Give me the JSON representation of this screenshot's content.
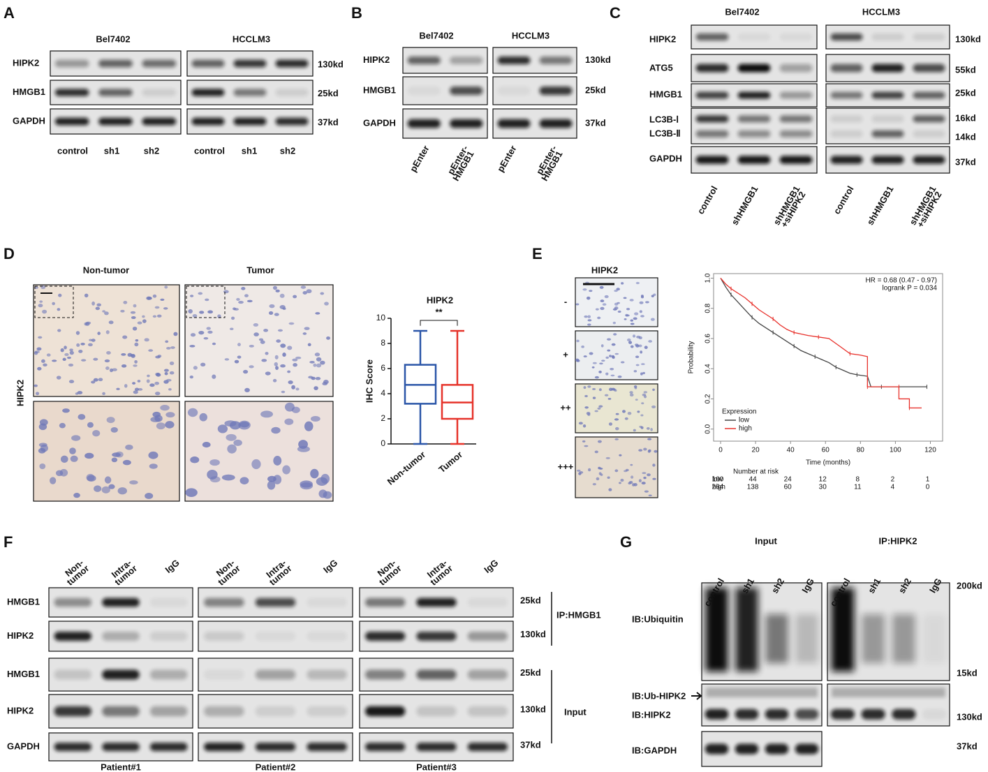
{
  "panels": {
    "A": {
      "label": "A",
      "cell_lines": [
        "Bel7402",
        "HCCLM3"
      ],
      "rows": [
        "HIPK2",
        "HMGB1",
        "GAPDH"
      ],
      "sizes": [
        "130kd",
        "25kd",
        "37kd"
      ],
      "lanes": [
        "control",
        "sh1",
        "sh2",
        "control",
        "sh1",
        "sh2"
      ]
    },
    "B": {
      "label": "B",
      "cell_lines": [
        "Bel7402",
        "HCCLM3"
      ],
      "rows": [
        "HIPK2",
        "HMGB1",
        "GAPDH"
      ],
      "sizes": [
        "130kd",
        "25kd",
        "37kd"
      ],
      "lanes": [
        [
          "pEnter"
        ],
        [
          "pEnter-",
          "HMGB1"
        ],
        [
          "pEnter"
        ],
        [
          "pEnter-",
          "HMGB1"
        ]
      ]
    },
    "C": {
      "label": "C",
      "cell_lines": [
        "Bel7402",
        "HCCLM3"
      ],
      "rows": [
        "HIPK2",
        "ATG5",
        "HMGB1",
        "LC3B-Ⅰ",
        "LC3B-Ⅱ",
        "GAPDH"
      ],
      "sizes": [
        "130kd",
        "55kd",
        "25kd",
        "16kd",
        "14kd",
        "37kd"
      ],
      "lanes": [
        [
          "control"
        ],
        [
          "shHMGB1"
        ],
        [
          "shHMGB1",
          "+siHIPK2"
        ],
        [
          "control"
        ],
        [
          "shHMGB1"
        ],
        [
          "shHMGB1",
          "+siHIPK2"
        ]
      ]
    },
    "D": {
      "label": "D",
      "headers": [
        "Non-tumor",
        "Tumor"
      ],
      "side_label": "HIPK2",
      "chart": {
        "type": "box",
        "title": "HIPK2",
        "annotation": "**",
        "ylabel": "IHC Score",
        "categories": [
          "Non-tumor",
          "Tumor"
        ],
        "boxes": [
          {
            "min": 0,
            "q1": 3.2,
            "median": 4.7,
            "q3": 6.3,
            "max": 9,
            "color": "#2b56a8"
          },
          {
            "min": 0,
            "q1": 2,
            "median": 3.3,
            "q3": 4.7,
            "max": 9,
            "color": "#e6332a"
          }
        ],
        "ylim": [
          0,
          10
        ],
        "yticks": [
          0,
          2,
          4,
          6,
          8,
          10
        ]
      }
    },
    "E": {
      "label": "E",
      "header": "HIPK2",
      "grades": [
        "-",
        "+",
        "++",
        "+++"
      ],
      "chart": {
        "type": "line",
        "xlabel": "Time (months)",
        "ylabel": "Probability",
        "annotations": [
          "HR = 0.68 (0.47 - 0.97)",
          "logrank P = 0.034"
        ],
        "legend_title": "Expression",
        "legend": "bottom-left",
        "xlim": [
          -4,
          127
        ],
        "ylim": [
          -0.08,
          1.03
        ],
        "xticks": [
          0,
          20,
          40,
          60,
          80,
          100,
          120
        ],
        "yticks": [
          {
            "value": 0,
            "label": "0.0"
          },
          0.2,
          0.4,
          0.6,
          0.8,
          {
            "value": 1,
            "label": "1.0"
          }
        ],
        "series": [
          {
            "name": "low",
            "color": "#444444",
            "x": [
              0,
              3,
              6,
              10,
              14,
              18,
              22,
              26,
              30,
              34,
              38,
              42,
              46,
              50,
              54,
              58,
              62,
              66,
              70,
              74,
              78,
              84,
              86,
              92,
              100,
              110,
              118
            ],
            "values": [
              1,
              0.94,
              0.89,
              0.84,
              0.79,
              0.74,
              0.7,
              0.67,
              0.64,
              0.61,
              0.58,
              0.55,
              0.52,
              0.5,
              0.48,
              0.46,
              0.44,
              0.41,
              0.39,
              0.37,
              0.36,
              0.35,
              0.28,
              0.28,
              0.28,
              0.28,
              0.28
            ]
          },
          {
            "name": "high",
            "color": "#e8302a",
            "x": [
              0,
              3,
              6,
              10,
              14,
              18,
              22,
              26,
              30,
              34,
              38,
              42,
              46,
              50,
              56,
              62,
              68,
              74,
              80,
              84,
              84,
              90,
              100,
              102,
              102,
              108,
              108,
              115
            ],
            "values": [
              1,
              0.96,
              0.93,
              0.9,
              0.87,
              0.83,
              0.79,
              0.76,
              0.73,
              0.69,
              0.66,
              0.64,
              0.63,
              0.62,
              0.61,
              0.6,
              0.55,
              0.5,
              0.49,
              0.48,
              0.28,
              0.28,
              0.28,
              0.28,
              0.2,
              0.2,
              0.14,
              0.14
            ]
          }
        ],
        "risk_table": {
          "title": "Number at risk",
          "rows": [
            {
              "name": "low",
              "values": [
                "100",
                "44",
                "24",
                "12",
                "8",
                "2",
                "1"
              ]
            },
            {
              "name": "high",
              "values": [
                "264",
                "138",
                "60",
                "30",
                "11",
                "4",
                "0"
              ]
            }
          ]
        }
      }
    },
    "F": {
      "label": "F",
      "lanes": [
        [
          "Non-",
          "tumor"
        ],
        [
          "Intra-",
          "tumor"
        ],
        [
          "IgG"
        ]
      ],
      "rows": [
        "HMGB1",
        "HIPK2",
        "HMGB1",
        "HIPK2",
        "GAPDH"
      ],
      "sizes": [
        "25kd",
        "130kd",
        "25kd",
        "130kd",
        "37kd"
      ],
      "groups": [
        "IP:HMGB1",
        "Input"
      ],
      "patients": [
        "Patient#1",
        "Patient#2",
        "Patient#3"
      ]
    },
    "G": {
      "label": "G",
      "groups": [
        "Input",
        "IP:HIPK2"
      ],
      "lanes": [
        "control",
        "sh1",
        "sh2",
        "IgG"
      ],
      "rows": [
        "IB:Ubiquitin",
        "IB:Ub-HIPK2",
        "IB:HIPK2",
        "IB:GAPDH"
      ],
      "sizes": [
        "200kd",
        "15kd",
        "130kd",
        "37kd"
      ]
    }
  }
}
